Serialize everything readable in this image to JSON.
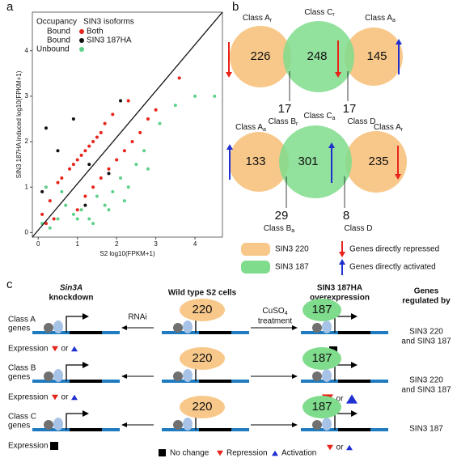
{
  "chart_data": {
    "type": "scatter",
    "panel": "a",
    "xlabel": "S2 log10(FPKM+1)",
    "ylabel": "SIN3 187HA induced log10(FPKM+1)",
    "xlim": [
      -0.15,
      4.7
    ],
    "ylim": [
      -0.1,
      4.85
    ],
    "xticks": [
      0,
      1,
      2,
      3,
      4
    ],
    "yticks": [
      0,
      1,
      2,
      3,
      4
    ],
    "legend": {
      "occupancy_title": "Occupancy",
      "isoform_title": "SIN3 isoforms",
      "occupancy": [
        "Bound",
        "Bound"
      ]
    },
    "series": [
      {
        "name": "Both",
        "color": "#e8231a",
        "x": [
          0.1,
          0.3,
          0.5,
          0.6,
          0.8,
          0.9,
          1.0,
          1.1,
          1.2,
          1.3,
          1.4,
          1.5,
          1.6,
          1.7,
          1.0,
          1.2,
          1.4,
          1.6,
          1.8,
          2.0,
          2.2,
          2.4,
          2.6,
          2.8,
          3.0,
          0.2,
          0.4,
          1.9,
          2.3,
          3.6
        ],
        "values": [
          0.4,
          0.7,
          1.1,
          1.2,
          1.4,
          1.5,
          1.6,
          1.7,
          1.8,
          1.9,
          2.0,
          2.1,
          2.2,
          2.4,
          0.5,
          0.8,
          1.0,
          1.2,
          1.4,
          1.6,
          1.8,
          2.0,
          2.2,
          2.5,
          2.7,
          0.2,
          0.3,
          2.6,
          2.9,
          3.4
        ]
      },
      {
        "name": "SIN3 187HA",
        "color": "#111111",
        "x": [
          0.2,
          0.5,
          0.9,
          1.3,
          1.8,
          2.1,
          0.1,
          1.2
        ],
        "values": [
          2.3,
          1.8,
          2.5,
          1.5,
          1.3,
          2.9,
          0.9,
          0.6
        ]
      },
      {
        "name": "Unbound",
        "color": "#5fd08a",
        "x": [
          0.1,
          0.3,
          0.5,
          0.7,
          0.9,
          1.1,
          1.3,
          1.5,
          1.7,
          1.9,
          2.1,
          2.3,
          2.5,
          2.7,
          3.1,
          3.5,
          4.0,
          4.5,
          0.2,
          0.6,
          1.0,
          1.4,
          1.8,
          2.2,
          2.8
        ],
        "values": [
          0.2,
          0.1,
          0.3,
          0.6,
          0.4,
          0.5,
          0.3,
          0.8,
          0.6,
          0.9,
          1.2,
          1.0,
          1.5,
          1.8,
          2.4,
          2.8,
          3.0,
          3.0,
          1.0,
          0.9,
          0.3,
          0.2,
          0.5,
          0.7,
          1.4
        ]
      }
    ]
  },
  "panel_b": {
    "label": "b",
    "venns": [
      {
        "numbers": [
          "226",
          "248",
          "145"
        ],
        "tops": [
          {
            "text": "Class A",
            "sub": "r"
          },
          {
            "text": "Class C",
            "sub": "r"
          },
          {
            "text": "Class A",
            "sub": "a"
          }
        ],
        "overlaps": [
          {
            "number": "17",
            "text": "Class B",
            "sub": "r"
          },
          {
            "number": "17",
            "text": "Class D",
            "sub": ""
          }
        ]
      },
      {
        "numbers": [
          "133",
          "301",
          "235"
        ],
        "tops": [
          {
            "text": "Class A",
            "sub": "a"
          },
          {
            "text": "Class C",
            "sub": "a"
          },
          {
            "text": "Class A",
            "sub": "r"
          }
        ],
        "overlaps": [
          {
            "number": "29",
            "text": "Class B",
            "sub": "a"
          },
          {
            "number": "8",
            "text": "Class D",
            "sub": ""
          }
        ]
      }
    ],
    "legend": [
      "SIN3 220",
      "SIN3 187",
      "Genes directly repressed",
      "Genes directly activated"
    ]
  },
  "panel_c": {
    "label": "c",
    "headers": {
      "left": [
        "Sin3A",
        "knockdown"
      ],
      "middle": "Wild type S2 cells",
      "right": [
        "SIN3 187HA",
        "overexpression"
      ],
      "regulated": [
        "Genes",
        "regulated by"
      ]
    },
    "treatments": {
      "left": "RNAi",
      "right": {
        "text": "CuSO",
        "sub": "4",
        "line2": "treatment"
      }
    },
    "rows": [
      {
        "label": [
          "Class A",
          "genes"
        ],
        "expression": "Expression",
        "wt": "220",
        "oe": "187",
        "left": {
          "type": "small",
          "or": "or"
        },
        "right": {
          "type": "square"
        },
        "regulated": [
          "SIN3 220",
          "and SIN3 187"
        ]
      },
      {
        "label": [
          "Class B",
          "genes"
        ],
        "expression": "Expression",
        "wt": "220",
        "oe": "187",
        "left": {
          "type": "small",
          "or": "or"
        },
        "right": {
          "type": "large",
          "or": "or"
        },
        "regulated": [
          "SIN3 220",
          "and SIN3 187"
        ]
      },
      {
        "label": [
          "Class C",
          "genes"
        ],
        "expression": "Expression",
        "wt": "220",
        "oe": "187",
        "left": {
          "type": "square"
        },
        "right": {
          "type": "small",
          "or": "or"
        },
        "regulated": [
          "SIN3 187"
        ]
      }
    ],
    "legend": [
      "No change",
      "Repression",
      "Activation"
    ]
  },
  "panel_a_label": "a"
}
